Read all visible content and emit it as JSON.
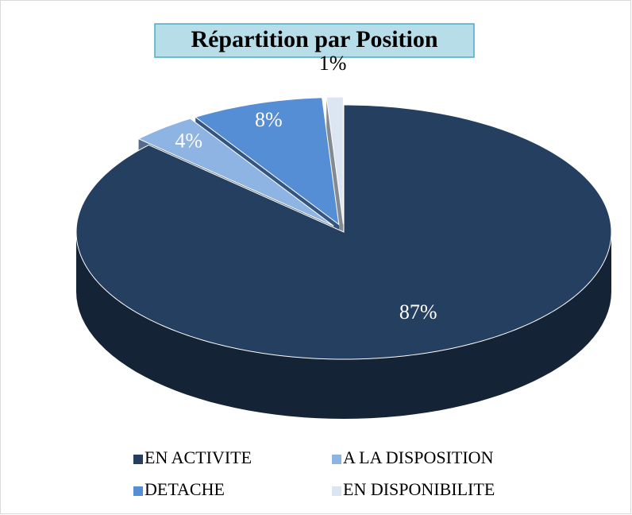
{
  "chart_data": {
    "type": "pie3d",
    "title": "Répartition par Position",
    "categories": [
      "EN ACTIVITE",
      "A LA DISPOSITION",
      "DETACHE",
      "EN DISPONIBILITE"
    ],
    "values": [
      87,
      4,
      8,
      1
    ],
    "value_labels": [
      "87%",
      "4%",
      "8%",
      "1%"
    ],
    "colors": [
      "#243f60",
      "#8eb4e3",
      "#558ed5",
      "#dce6f2"
    ],
    "legend": "bottom"
  }
}
